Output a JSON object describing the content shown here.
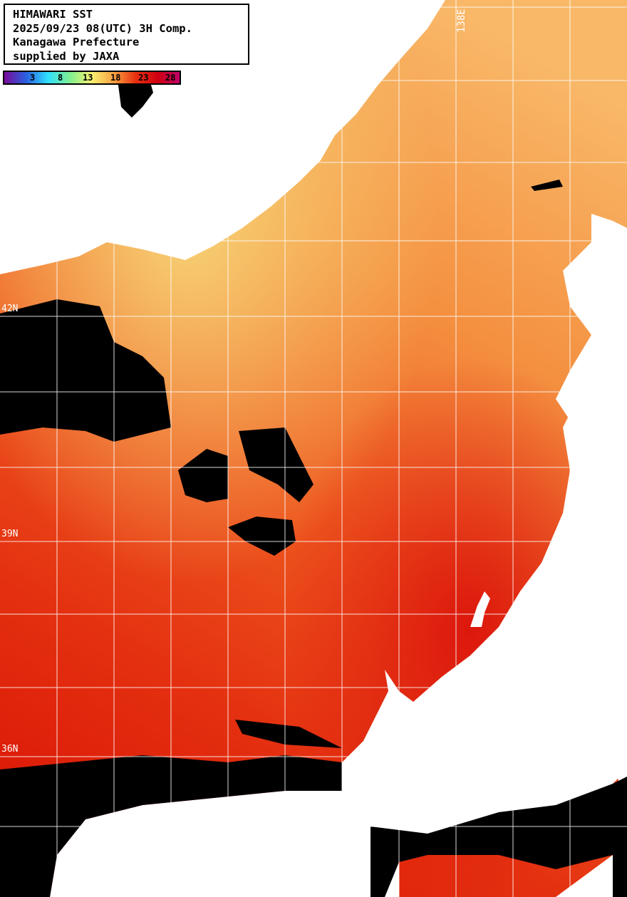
{
  "header": {
    "lines": [
      "HIMAWARI SST",
      "2025/09/23 08(UTC) 3H Comp.",
      "Kanagawa Prefecture",
      "supplied by JAXA"
    ]
  },
  "colorbar": {
    "ticks": [
      "3",
      "8",
      "13",
      "18",
      "23",
      "28"
    ],
    "unit_colors": [
      "#7a0a9a",
      "#2a60e0",
      "#30e0ff",
      "#80f090",
      "#f8f070",
      "#f8a040",
      "#e83010",
      "#d00010",
      "#c0006a"
    ]
  },
  "map": {
    "lat_labels": [
      "42N",
      "39N",
      "36N"
    ],
    "lon_labels": [
      "138E"
    ],
    "colors": {
      "land": "#ffffff",
      "cloud": "#000000",
      "grid": "#ffffff"
    }
  }
}
